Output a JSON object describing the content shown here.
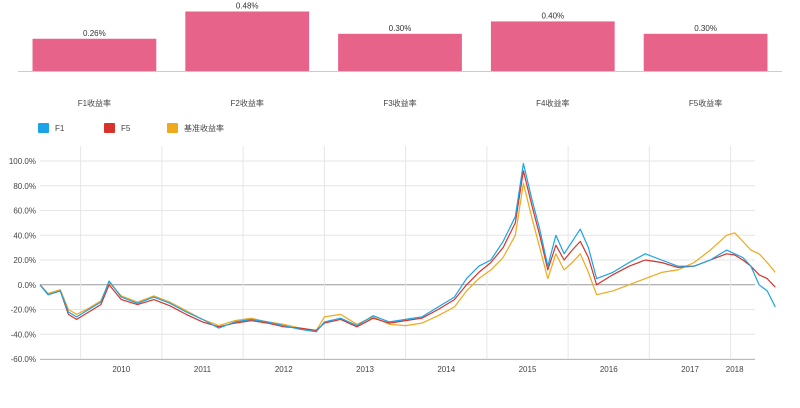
{
  "chart_data": [
    {
      "type": "bar",
      "categories": [
        "F1收益率",
        "F2收益率",
        "F3收益率",
        "F4收益率",
        "F5收益率"
      ],
      "values": [
        0.26,
        0.48,
        0.3,
        0.4,
        0.3
      ],
      "value_labels": [
        "0.26%",
        "0.48%",
        "0.30%",
        "0.40%",
        "0.30%"
      ],
      "ylim": [
        0,
        0.5
      ],
      "bar_color": "#e8638a",
      "grid": false
    },
    {
      "type": "line",
      "legend_position": "top-left",
      "x_ticks": [
        "2010",
        "2011",
        "2012",
        "2013",
        "2014",
        "2015",
        "2016",
        "2017",
        "2018"
      ],
      "x_range": [
        2009.5,
        2018.3
      ],
      "y_ticks": [
        "100.0%",
        "80.0%",
        "60.0%",
        "40.0%",
        "20.0%",
        "0.0%",
        "-20.0%",
        "-40.0%",
        "-60.0%"
      ],
      "ylim": [
        -60,
        110
      ],
      "y_unit": "%",
      "grid": true,
      "series": [
        {
          "name": "F1",
          "color": "#1aa3e8",
          "points": [
            [
              2009.5,
              0
            ],
            [
              2009.6,
              -8
            ],
            [
              2009.75,
              -5
            ],
            [
              2009.85,
              -22
            ],
            [
              2009.95,
              -26
            ],
            [
              2010.1,
              -20
            ],
            [
              2010.25,
              -14
            ],
            [
              2010.35,
              3
            ],
            [
              2010.5,
              -10
            ],
            [
              2010.7,
              -15
            ],
            [
              2010.9,
              -10
            ],
            [
              2011.1,
              -15
            ],
            [
              2011.3,
              -22
            ],
            [
              2011.5,
              -28
            ],
            [
              2011.7,
              -35
            ],
            [
              2011.9,
              -30
            ],
            [
              2012.1,
              -28
            ],
            [
              2012.3,
              -30
            ],
            [
              2012.5,
              -33
            ],
            [
              2012.7,
              -36
            ],
            [
              2012.9,
              -38
            ],
            [
              2013.0,
              -30
            ],
            [
              2013.2,
              -27
            ],
            [
              2013.4,
              -33
            ],
            [
              2013.6,
              -25
            ],
            [
              2013.8,
              -30
            ],
            [
              2014.0,
              -28
            ],
            [
              2014.2,
              -26
            ],
            [
              2014.4,
              -18
            ],
            [
              2014.6,
              -10
            ],
            [
              2014.75,
              5
            ],
            [
              2014.9,
              15
            ],
            [
              2015.05,
              20
            ],
            [
              2015.2,
              35
            ],
            [
              2015.35,
              55
            ],
            [
              2015.45,
              98
            ],
            [
              2015.55,
              70
            ],
            [
              2015.65,
              45
            ],
            [
              2015.75,
              15
            ],
            [
              2015.85,
              40
            ],
            [
              2015.95,
              25
            ],
            [
              2016.05,
              35
            ],
            [
              2016.15,
              45
            ],
            [
              2016.25,
              30
            ],
            [
              2016.35,
              5
            ],
            [
              2016.55,
              10
            ],
            [
              2016.75,
              18
            ],
            [
              2016.95,
              25
            ],
            [
              2017.15,
              20
            ],
            [
              2017.35,
              15
            ],
            [
              2017.55,
              15
            ],
            [
              2017.75,
              20
            ],
            [
              2017.95,
              28
            ],
            [
              2018.05,
              25
            ],
            [
              2018.15,
              22
            ],
            [
              2018.25,
              15
            ],
            [
              2018.35,
              0
            ],
            [
              2018.45,
              -5
            ],
            [
              2018.55,
              -18
            ]
          ]
        },
        {
          "name": "F5",
          "color": "#d8332a",
          "points": [
            [
              2009.5,
              0
            ],
            [
              2009.6,
              -8
            ],
            [
              2009.75,
              -5
            ],
            [
              2009.85,
              -24
            ],
            [
              2009.95,
              -28
            ],
            [
              2010.1,
              -22
            ],
            [
              2010.25,
              -16
            ],
            [
              2010.35,
              0
            ],
            [
              2010.5,
              -12
            ],
            [
              2010.7,
              -16
            ],
            [
              2010.9,
              -12
            ],
            [
              2011.1,
              -17
            ],
            [
              2011.3,
              -24
            ],
            [
              2011.5,
              -30
            ],
            [
              2011.7,
              -34
            ],
            [
              2011.9,
              -31
            ],
            [
              2012.1,
              -29
            ],
            [
              2012.3,
              -31
            ],
            [
              2012.5,
              -34
            ],
            [
              2012.7,
              -35
            ],
            [
              2012.9,
              -37
            ],
            [
              2013.0,
              -31
            ],
            [
              2013.2,
              -28
            ],
            [
              2013.4,
              -34
            ],
            [
              2013.6,
              -27
            ],
            [
              2013.8,
              -31
            ],
            [
              2014.0,
              -29
            ],
            [
              2014.2,
              -27
            ],
            [
              2014.4,
              -20
            ],
            [
              2014.6,
              -12
            ],
            [
              2014.75,
              0
            ],
            [
              2014.9,
              10
            ],
            [
              2015.05,
              18
            ],
            [
              2015.2,
              30
            ],
            [
              2015.35,
              50
            ],
            [
              2015.45,
              92
            ],
            [
              2015.55,
              65
            ],
            [
              2015.65,
              40
            ],
            [
              2015.75,
              12
            ],
            [
              2015.85,
              32
            ],
            [
              2015.95,
              20
            ],
            [
              2016.05,
              28
            ],
            [
              2016.15,
              35
            ],
            [
              2016.25,
              22
            ],
            [
              2016.35,
              0
            ],
            [
              2016.55,
              8
            ],
            [
              2016.75,
              15
            ],
            [
              2016.95,
              20
            ],
            [
              2017.15,
              18
            ],
            [
              2017.35,
              14
            ],
            [
              2017.55,
              15
            ],
            [
              2017.75,
              20
            ],
            [
              2017.95,
              25
            ],
            [
              2018.05,
              24
            ],
            [
              2018.15,
              20
            ],
            [
              2018.25,
              15
            ],
            [
              2018.35,
              8
            ],
            [
              2018.45,
              5
            ],
            [
              2018.55,
              -2
            ]
          ]
        },
        {
          "name": "基准收益率",
          "color": "#f0a81c",
          "points": [
            [
              2009.5,
              0
            ],
            [
              2009.6,
              -7
            ],
            [
              2009.75,
              -4
            ],
            [
              2009.85,
              -20
            ],
            [
              2009.95,
              -24
            ],
            [
              2010.1,
              -19
            ],
            [
              2010.25,
              -13
            ],
            [
              2010.35,
              2
            ],
            [
              2010.5,
              -9
            ],
            [
              2010.7,
              -14
            ],
            [
              2010.9,
              -9
            ],
            [
              2011.1,
              -14
            ],
            [
              2011.3,
              -21
            ],
            [
              2011.5,
              -28
            ],
            [
              2011.7,
              -33
            ],
            [
              2011.9,
              -29
            ],
            [
              2012.1,
              -27
            ],
            [
              2012.3,
              -30
            ],
            [
              2012.5,
              -32
            ],
            [
              2012.7,
              -35
            ],
            [
              2012.9,
              -37
            ],
            [
              2013.0,
              -26
            ],
            [
              2013.2,
              -24
            ],
            [
              2013.4,
              -32
            ],
            [
              2013.6,
              -26
            ],
            [
              2013.8,
              -32
            ],
            [
              2014.0,
              -33
            ],
            [
              2014.2,
              -31
            ],
            [
              2014.4,
              -25
            ],
            [
              2014.6,
              -18
            ],
            [
              2014.75,
              -5
            ],
            [
              2014.9,
              5
            ],
            [
              2015.05,
              12
            ],
            [
              2015.2,
              22
            ],
            [
              2015.35,
              40
            ],
            [
              2015.45,
              82
            ],
            [
              2015.55,
              55
            ],
            [
              2015.65,
              30
            ],
            [
              2015.75,
              5
            ],
            [
              2015.85,
              25
            ],
            [
              2015.95,
              12
            ],
            [
              2016.05,
              18
            ],
            [
              2016.15,
              25
            ],
            [
              2016.25,
              10
            ],
            [
              2016.35,
              -8
            ],
            [
              2016.55,
              -5
            ],
            [
              2016.75,
              0
            ],
            [
              2016.95,
              5
            ],
            [
              2017.15,
              10
            ],
            [
              2017.35,
              12
            ],
            [
              2017.55,
              18
            ],
            [
              2017.75,
              28
            ],
            [
              2017.95,
              40
            ],
            [
              2018.05,
              42
            ],
            [
              2018.15,
              35
            ],
            [
              2018.25,
              28
            ],
            [
              2018.35,
              25
            ],
            [
              2018.45,
              18
            ],
            [
              2018.55,
              10
            ]
          ]
        }
      ]
    }
  ]
}
